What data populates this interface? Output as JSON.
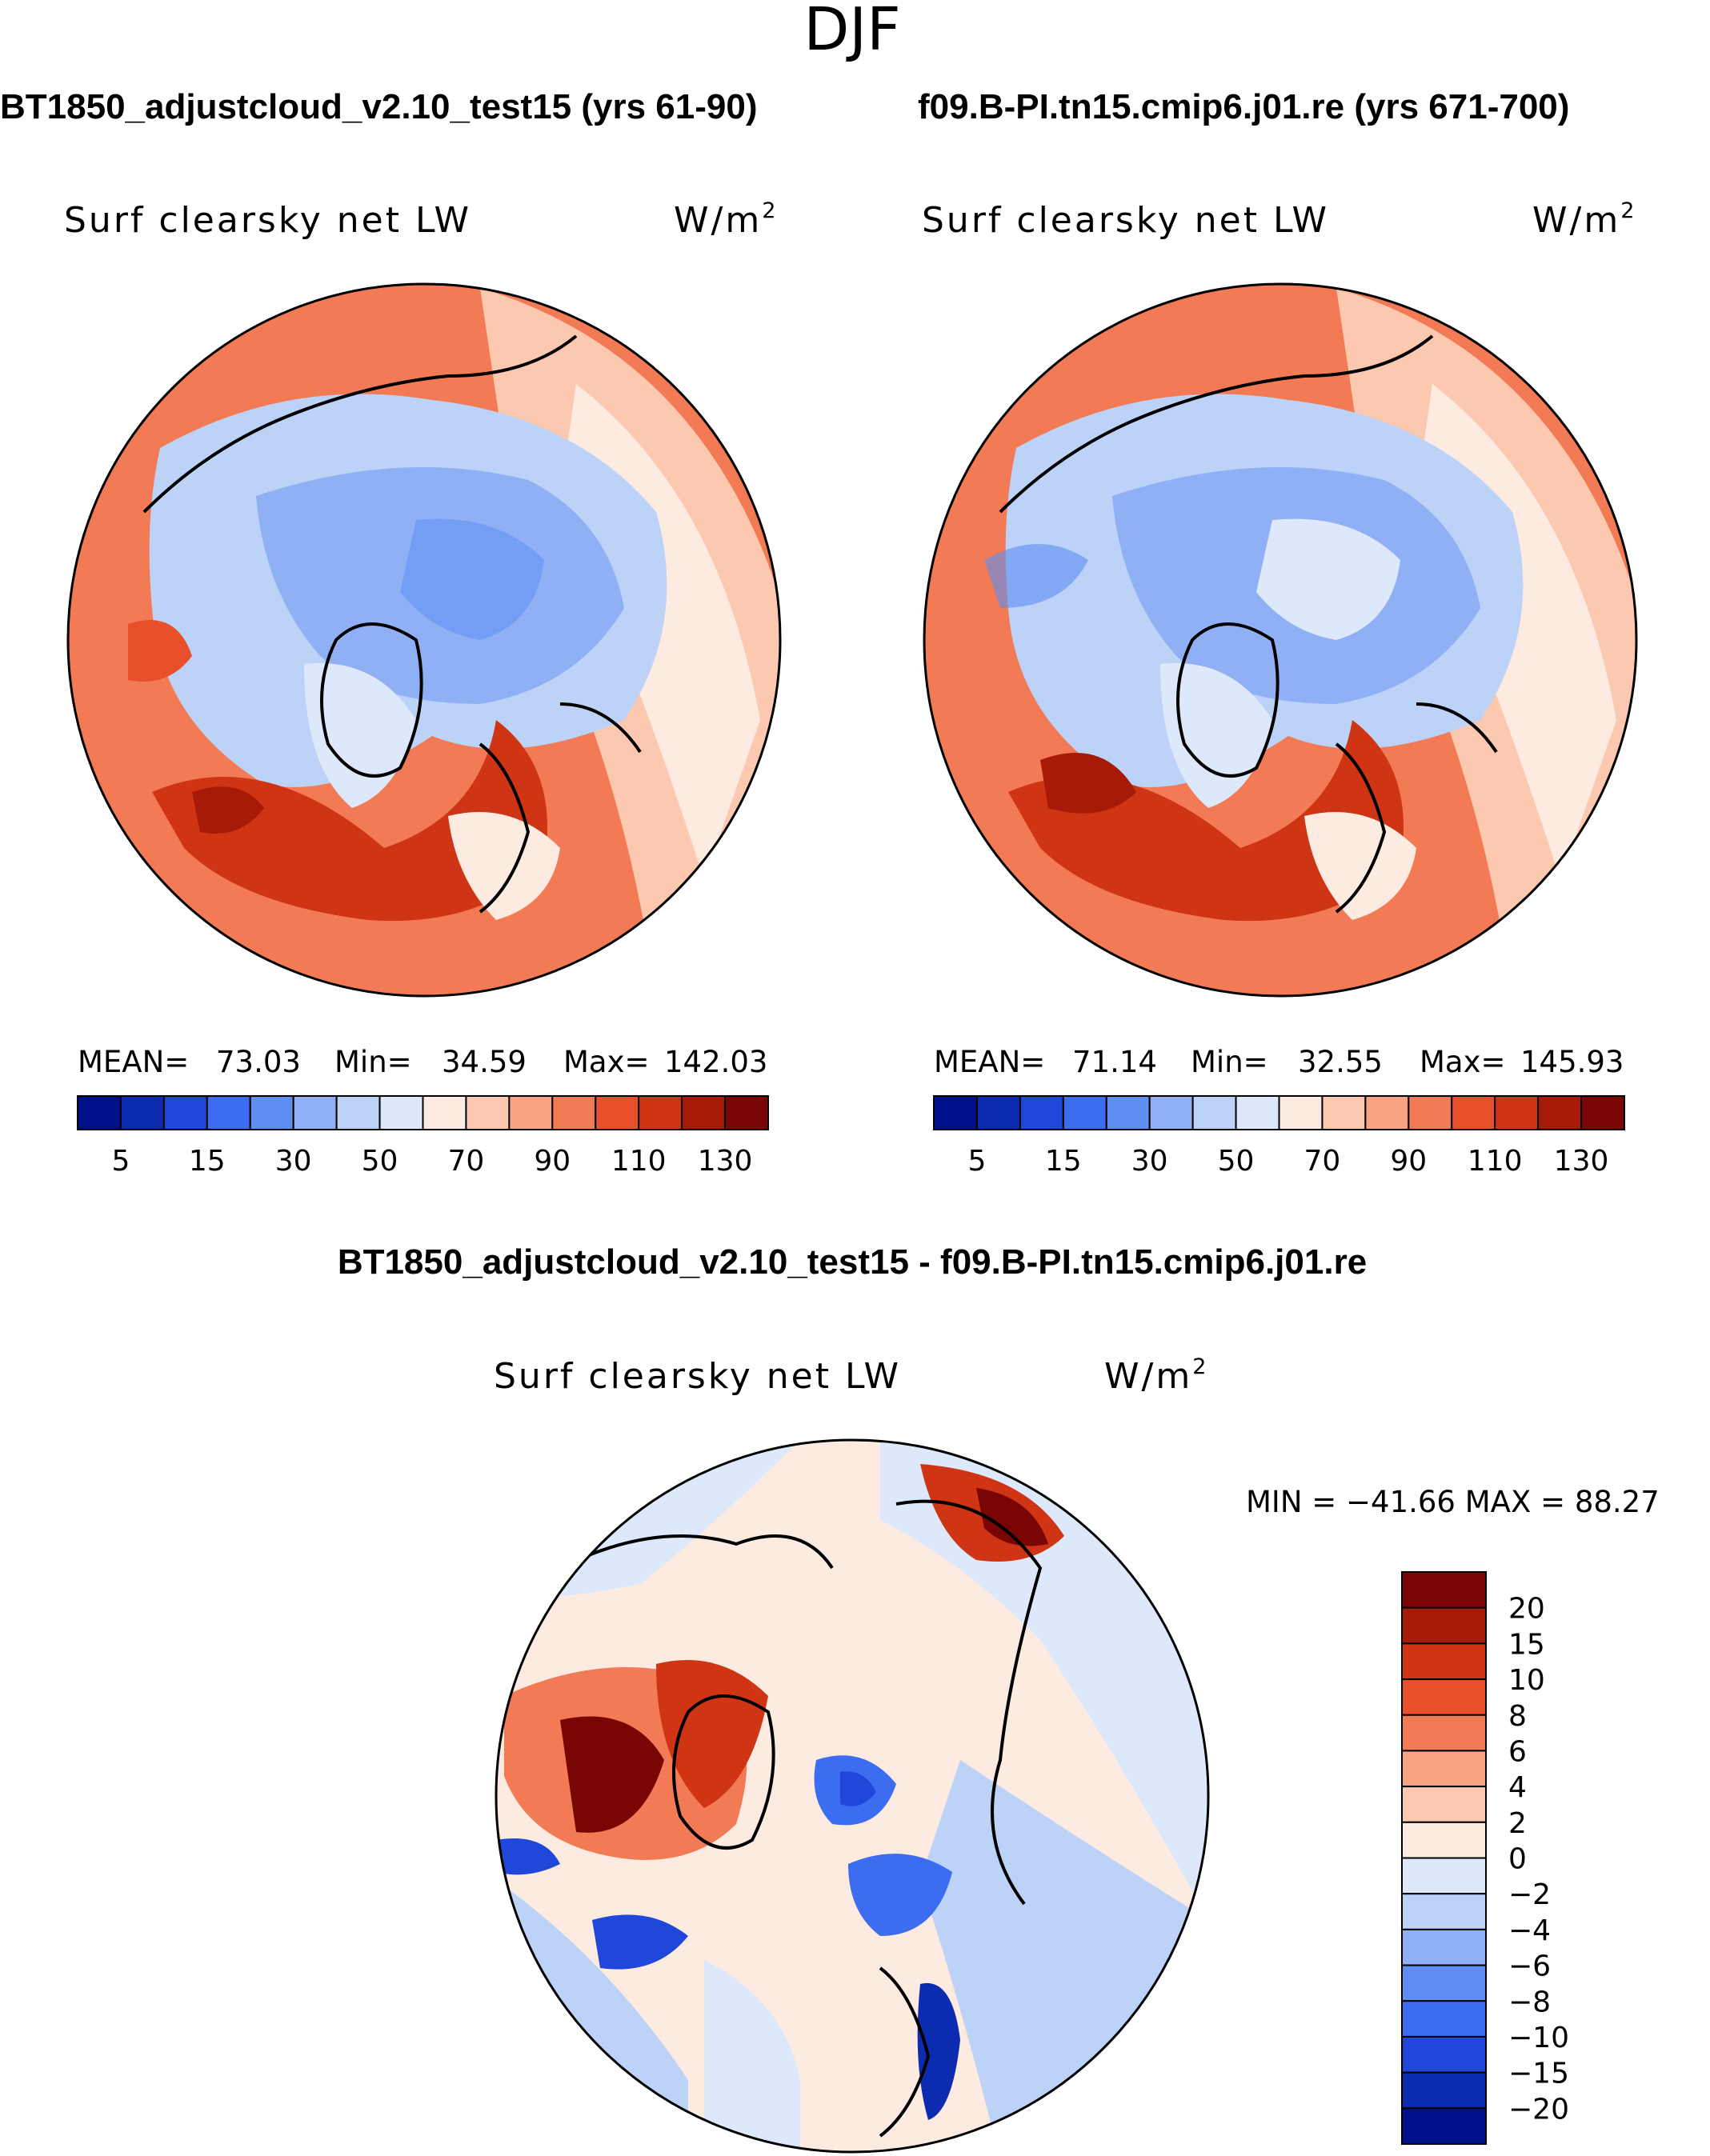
{
  "figure_title": "DJF",
  "panels": {
    "left": {
      "case_title": "BT1850_adjustcloud_v2.10_test15 (yrs 61-90)",
      "variable": "Surf clearsky net LW",
      "units_base": "W/m",
      "units_exp": "2",
      "mean_label": "MEAN=",
      "mean_value": "73.03",
      "min_label": "Min=",
      "min_value": "34.59",
      "max_label": "Max=",
      "max_value": "142.03"
    },
    "right": {
      "case_title": "f09.B-PI.tn15.cmip6.j01.re (yrs 671-700)",
      "variable": "Surf clearsky net LW",
      "units_base": "W/m",
      "units_exp": "2",
      "mean_label": "MEAN=",
      "mean_value": "71.14",
      "min_label": "Min=",
      "min_value": "32.55",
      "max_label": "Max=",
      "max_value": "145.93"
    },
    "diff": {
      "case_title": "BT1850_adjustcloud_v2.10_test15 - f09.B-PI.tn15.cmip6.j01.re",
      "variable": "Surf clearsky net LW",
      "units_base": "W/m",
      "units_exp": "2",
      "minmax_text": "MIN = −41.66 MAX =   88.27"
    }
  },
  "chart_data": [
    {
      "type": "heatmap",
      "projection": "north polar stereographic",
      "title": "Surf clearsky net LW",
      "case": "BT1850_adjustcloud_v2.10_test15 (yrs 61-90)",
      "units": "W/m2",
      "mean": 73.03,
      "min": 34.59,
      "max": 142.03,
      "colorbar": {
        "orientation": "horizontal",
        "levels": [
          5,
          10,
          15,
          20,
          30,
          40,
          50,
          60,
          70,
          80,
          90,
          100,
          110,
          120,
          130
        ],
        "tick_labels": [
          "5",
          "15",
          "30",
          "50",
          "70",
          "90",
          "110",
          "130"
        ],
        "colors": [
          "#000f8a",
          "#0d2bb0",
          "#1f48da",
          "#3c6cf0",
          "#5f8ef2",
          "#8fb0f5",
          "#bcd2f7",
          "#dde9fb",
          "#fdeae0",
          "#fcc9b0",
          "#f9a583",
          "#f27a55",
          "#e8502c",
          "#cf3414",
          "#a71a08",
          "#7a0505"
        ]
      }
    },
    {
      "type": "heatmap",
      "projection": "north polar stereographic",
      "title": "Surf clearsky net LW",
      "case": "f09.B-PI.tn15.cmip6.j01.re (yrs 671-700)",
      "units": "W/m2",
      "mean": 71.14,
      "min": 32.55,
      "max": 145.93,
      "colorbar": {
        "orientation": "horizontal",
        "levels": [
          5,
          10,
          15,
          20,
          30,
          40,
          50,
          60,
          70,
          80,
          90,
          100,
          110,
          120,
          130
        ],
        "tick_labels": [
          "5",
          "15",
          "30",
          "50",
          "70",
          "90",
          "110",
          "130"
        ],
        "colors": [
          "#000f8a",
          "#0d2bb0",
          "#1f48da",
          "#3c6cf0",
          "#5f8ef2",
          "#8fb0f5",
          "#bcd2f7",
          "#dde9fb",
          "#fdeae0",
          "#fcc9b0",
          "#f9a583",
          "#f27a55",
          "#e8502c",
          "#cf3414",
          "#a71a08",
          "#7a0505"
        ]
      }
    },
    {
      "type": "heatmap",
      "projection": "north polar stereographic",
      "title": "Surf clearsky net LW",
      "case": "BT1850_adjustcloud_v2.10_test15 - f09.B-PI.tn15.cmip6.j01.re",
      "units": "W/m2",
      "min": -41.66,
      "max": 88.27,
      "colorbar": {
        "orientation": "vertical",
        "levels": [
          20,
          15,
          10,
          8,
          6,
          4,
          2,
          0,
          -2,
          -4,
          -6,
          -8,
          -10,
          -15,
          -20
        ],
        "tick_labels": [
          "20",
          "15",
          "10",
          "8",
          "6",
          "4",
          "2",
          "0",
          "−2",
          "−4",
          "−6",
          "−8",
          "−10",
          "−15",
          "−20"
        ],
        "colors": [
          "#7a0505",
          "#a71a08",
          "#cf3414",
          "#e8502c",
          "#f27a55",
          "#f9a583",
          "#fcc9b0",
          "#fdeae0",
          "#dde9fb",
          "#bcd2f7",
          "#8fb0f5",
          "#5f8ef2",
          "#3c6cf0",
          "#1f48da",
          "#0d2bb0",
          "#000f8a"
        ]
      }
    }
  ]
}
